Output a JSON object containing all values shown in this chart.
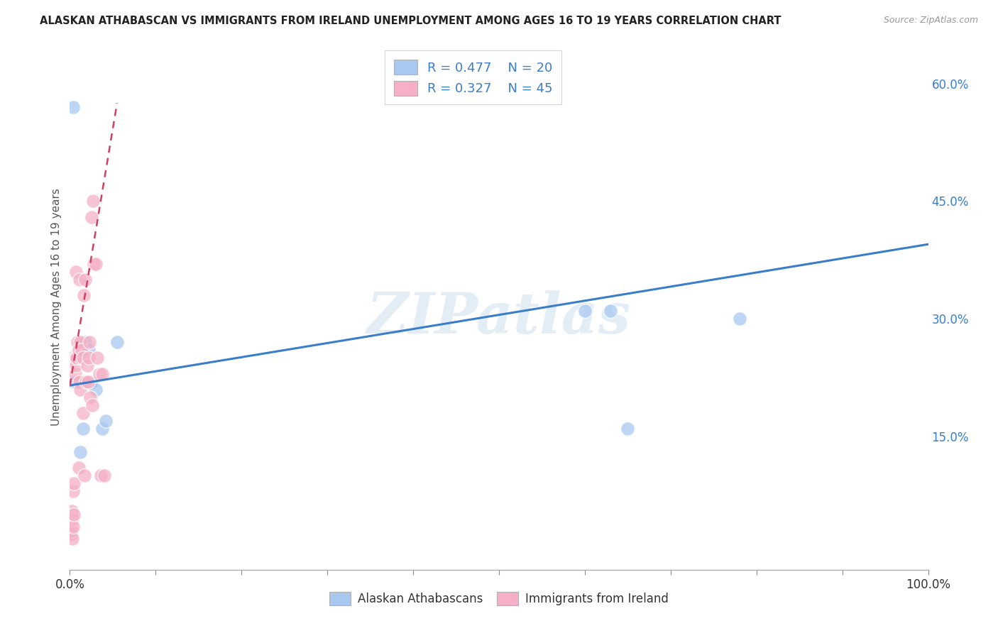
{
  "title": "ALASKAN ATHABASCAN VS IMMIGRANTS FROM IRELAND UNEMPLOYMENT AMONG AGES 16 TO 19 YEARS CORRELATION CHART",
  "source": "Source: ZipAtlas.com",
  "ylabel": "Unemployment Among Ages 16 to 19 years",
  "xlim": [
    0,
    1.0
  ],
  "ylim": [
    -0.02,
    0.65
  ],
  "watermark": "ZIPatlas",
  "legend_R_blue": "0.477",
  "legend_N_blue": "20",
  "legend_R_pink": "0.327",
  "legend_N_pink": "45",
  "blue_scatter_x": [
    0.003,
    0.005,
    0.008,
    0.01,
    0.012,
    0.015,
    0.018,
    0.02,
    0.022,
    0.025,
    0.03,
    0.038,
    0.042,
    0.055,
    0.6,
    0.63,
    0.65,
    0.78,
    0.007,
    0.004
  ],
  "blue_scatter_y": [
    0.25,
    0.22,
    0.25,
    0.26,
    0.13,
    0.16,
    0.27,
    0.22,
    0.26,
    0.22,
    0.21,
    0.16,
    0.17,
    0.27,
    0.31,
    0.31,
    0.16,
    0.3,
    0.22,
    0.57
  ],
  "pink_scatter_x": [
    0.001,
    0.002,
    0.002,
    0.003,
    0.003,
    0.004,
    0.004,
    0.005,
    0.005,
    0.006,
    0.006,
    0.007,
    0.007,
    0.008,
    0.008,
    0.009,
    0.01,
    0.01,
    0.011,
    0.011,
    0.012,
    0.012,
    0.013,
    0.014,
    0.015,
    0.015,
    0.016,
    0.017,
    0.018,
    0.019,
    0.02,
    0.021,
    0.022,
    0.023,
    0.024,
    0.025,
    0.026,
    0.027,
    0.028,
    0.03,
    0.032,
    0.034,
    0.036,
    0.038,
    0.04
  ],
  "pink_scatter_y": [
    0.025,
    0.03,
    0.055,
    0.02,
    0.045,
    0.035,
    0.08,
    0.05,
    0.09,
    0.23,
    0.25,
    0.24,
    0.36,
    0.25,
    0.25,
    0.27,
    0.26,
    0.11,
    0.22,
    0.35,
    0.21,
    0.27,
    0.25,
    0.26,
    0.25,
    0.18,
    0.33,
    0.1,
    0.35,
    0.22,
    0.24,
    0.22,
    0.25,
    0.27,
    0.2,
    0.43,
    0.19,
    0.45,
    0.37,
    0.37,
    0.25,
    0.23,
    0.1,
    0.23,
    0.1
  ],
  "blue_line_x0": 0.0,
  "blue_line_x1": 1.0,
  "blue_line_y0": 0.215,
  "blue_line_y1": 0.395,
  "pink_line_x0": 0.0,
  "pink_line_x1": 0.055,
  "pink_line_y0": 0.215,
  "pink_line_y1": 0.575,
  "blue_color": "#a8c8f0",
  "pink_color": "#f5b0c5",
  "blue_line_color": "#3a7dc9",
  "pink_line_color": "#d04060",
  "grid_color": "#c8c8c8",
  "axis_label_color": "#3a7dc9",
  "background_color": "#ffffff",
  "yticks": [
    0.0,
    0.15,
    0.3,
    0.45,
    0.6
  ],
  "yticklabels": [
    "",
    "15.0%",
    "30.0%",
    "45.0%",
    "60.0%"
  ],
  "xtick_positions": [
    0.0,
    0.1,
    0.2,
    0.3,
    0.4,
    0.5,
    0.6,
    0.7,
    0.8,
    0.9,
    1.0
  ]
}
